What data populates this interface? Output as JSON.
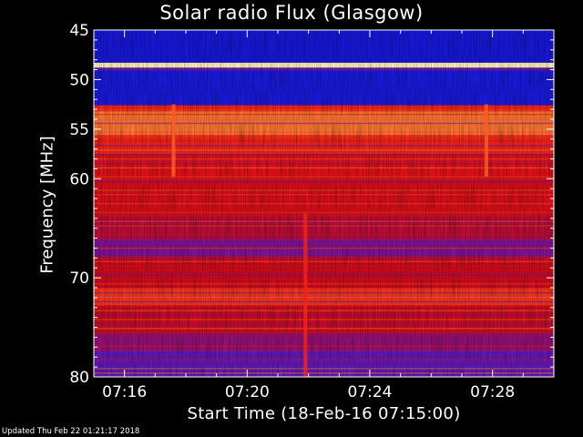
{
  "chart_data": {
    "type": "heatmap",
    "title": "Solar radio Flux (Glasgow)",
    "ylabel": "Frequency [MHz]",
    "xlabel": "Start Time (18-Feb-16 07:15:00)",
    "yticks": [
      45,
      50,
      55,
      60,
      70,
      80
    ],
    "ylim": [
      45,
      80
    ],
    "xticks": [
      "07:16",
      "07:20",
      "07:24",
      "07:28"
    ],
    "xlim_minutes_after_start": [
      0,
      15
    ],
    "xtick_minutes_after_start": [
      1,
      5,
      9,
      13
    ],
    "colormap": "blue-red-yellow-white",
    "bands": [
      {
        "from": 45,
        "to": 48.3,
        "level": 0.05
      },
      {
        "from": 48.3,
        "to": 48.8,
        "level": 0.95
      },
      {
        "from": 48.8,
        "to": 49.1,
        "level": 0.2
      },
      {
        "from": 49.1,
        "to": 52.6,
        "level": 0.06
      },
      {
        "from": 52.6,
        "to": 53.2,
        "level": 0.55
      },
      {
        "from": 53.2,
        "to": 55.6,
        "level": 0.72
      },
      {
        "from": 55.6,
        "to": 57.5,
        "level": 0.55
      },
      {
        "from": 57.5,
        "to": 60.2,
        "level": 0.45
      },
      {
        "from": 60.2,
        "to": 63.8,
        "level": 0.4
      },
      {
        "from": 63.8,
        "to": 66,
        "level": 0.32
      },
      {
        "from": 66,
        "to": 68,
        "level": 0.25
      },
      {
        "from": 68,
        "to": 71,
        "level": 0.36
      },
      {
        "from": 71,
        "to": 72.8,
        "level": 0.6
      },
      {
        "from": 72.8,
        "to": 75.5,
        "level": 0.36
      },
      {
        "from": 75.5,
        "to": 77.2,
        "level": 0.28
      },
      {
        "from": 77.2,
        "to": 80,
        "level": 0.2
      }
    ],
    "vertical_features": [
      {
        "minute": 2.6,
        "from": 52.5,
        "to": 59.8,
        "level": 0.68
      },
      {
        "minute": 12.8,
        "from": 52.5,
        "to": 59.8,
        "level": 0.68
      },
      {
        "minute": 6.9,
        "from": 63.5,
        "to": 80,
        "level": 0.55
      }
    ]
  },
  "footer": {
    "updated": "Updated Thu Feb 22 01:21:17 2018"
  }
}
